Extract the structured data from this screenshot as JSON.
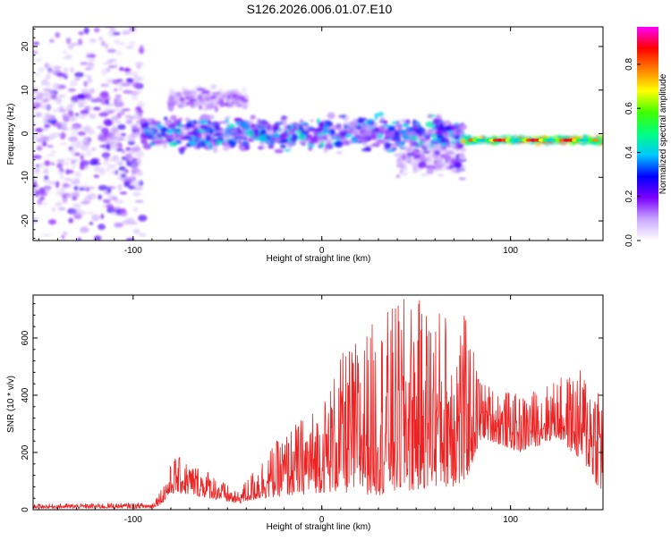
{
  "chart_data": [
    {
      "type": "heatmap",
      "title": "S126.2026.006.01.07.E10",
      "xlabel": "Height of straight line (km)",
      "ylabel": "Frequency (Hz)",
      "xlim": [
        -153,
        149
      ],
      "ylim": [
        -24.5,
        24.5
      ],
      "xticks": [
        -100,
        0,
        100
      ],
      "yticks": [
        -20,
        -10,
        0,
        10,
        20
      ],
      "xtick_labels": [
        "-100",
        "0",
        "100"
      ],
      "ytick_labels": [
        "-20",
        "-10",
        "0",
        "10",
        "20"
      ],
      "colorbar": {
        "label": "Normalized spectral amplitude",
        "range": [
          0,
          0.97
        ],
        "ticks": [
          0.0,
          0.2,
          0.4,
          0.6,
          0.8
        ],
        "tick_labels": [
          "0.0",
          "0.2",
          "0.4",
          "0.6",
          "0.8"
        ],
        "colormap": "rainbow",
        "stops": [
          "#ffffff",
          "#c9a8ff",
          "#7a00ff",
          "#0000ff",
          "#00c8ff",
          "#00ff80",
          "#40ff00",
          "#ffff00",
          "#ff8000",
          "#ff0000",
          "#ff00ff"
        ]
      },
      "regions": [
        {
          "x_range": [
            -153,
            -95
          ],
          "freq_center": 0,
          "freq_spread": 24,
          "amplitude": [
            0.05,
            0.25
          ],
          "description_of_pattern": "broadband noise"
        },
        {
          "x_range": [
            -95,
            75
          ],
          "freq_center": 0,
          "freq_spread": 5,
          "amplitude": [
            0.1,
            0.45
          ]
        },
        {
          "x_range": [
            -80,
            -40
          ],
          "freq_center": 8,
          "freq_spread": 3,
          "amplitude": [
            0.05,
            0.2
          ]
        },
        {
          "x_range": [
            40,
            75
          ],
          "freq_center": -6,
          "freq_spread": 5,
          "amplitude": [
            0.05,
            0.25
          ]
        },
        {
          "x_range": [
            75,
            149
          ],
          "freq_center": -1.5,
          "freq_spread": 0.8,
          "amplitude": [
            0.4,
            0.9
          ]
        }
      ]
    },
    {
      "type": "line",
      "xlabel": "Height of straight line (km)",
      "ylabel": "SNR (10 * v/v)",
      "xlim": [
        -153,
        149
      ],
      "ylim": [
        0,
        750
      ],
      "xticks": [
        -100,
        0,
        100
      ],
      "yticks": [
        0,
        200,
        400,
        600
      ],
      "xtick_labels": [
        "-100",
        "0",
        "100"
      ],
      "ytick_labels": [
        "0",
        "200",
        "400",
        "600"
      ],
      "color": "#ee2222",
      "envelope": [
        {
          "x": -153,
          "low": 5,
          "high": 20
        },
        {
          "x": -90,
          "low": 5,
          "high": 25
        },
        {
          "x": -85,
          "low": 20,
          "high": 80
        },
        {
          "x": -78,
          "low": 60,
          "high": 190
        },
        {
          "x": -60,
          "low": 40,
          "high": 140
        },
        {
          "x": -45,
          "low": 20,
          "high": 60
        },
        {
          "x": -30,
          "low": 40,
          "high": 200
        },
        {
          "x": -15,
          "low": 50,
          "high": 300
        },
        {
          "x": 0,
          "low": 60,
          "high": 380
        },
        {
          "x": 10,
          "low": 60,
          "high": 540
        },
        {
          "x": 30,
          "low": 50,
          "high": 680
        },
        {
          "x": 45,
          "low": 60,
          "high": 750
        },
        {
          "x": 60,
          "low": 80,
          "high": 720
        },
        {
          "x": 75,
          "low": 80,
          "high": 700
        },
        {
          "x": 85,
          "low": 250,
          "high": 450
        },
        {
          "x": 105,
          "low": 200,
          "high": 400
        },
        {
          "x": 125,
          "low": 250,
          "high": 460
        },
        {
          "x": 140,
          "low": 150,
          "high": 500
        },
        {
          "x": 149,
          "low": 50,
          "high": 500
        }
      ]
    }
  ]
}
